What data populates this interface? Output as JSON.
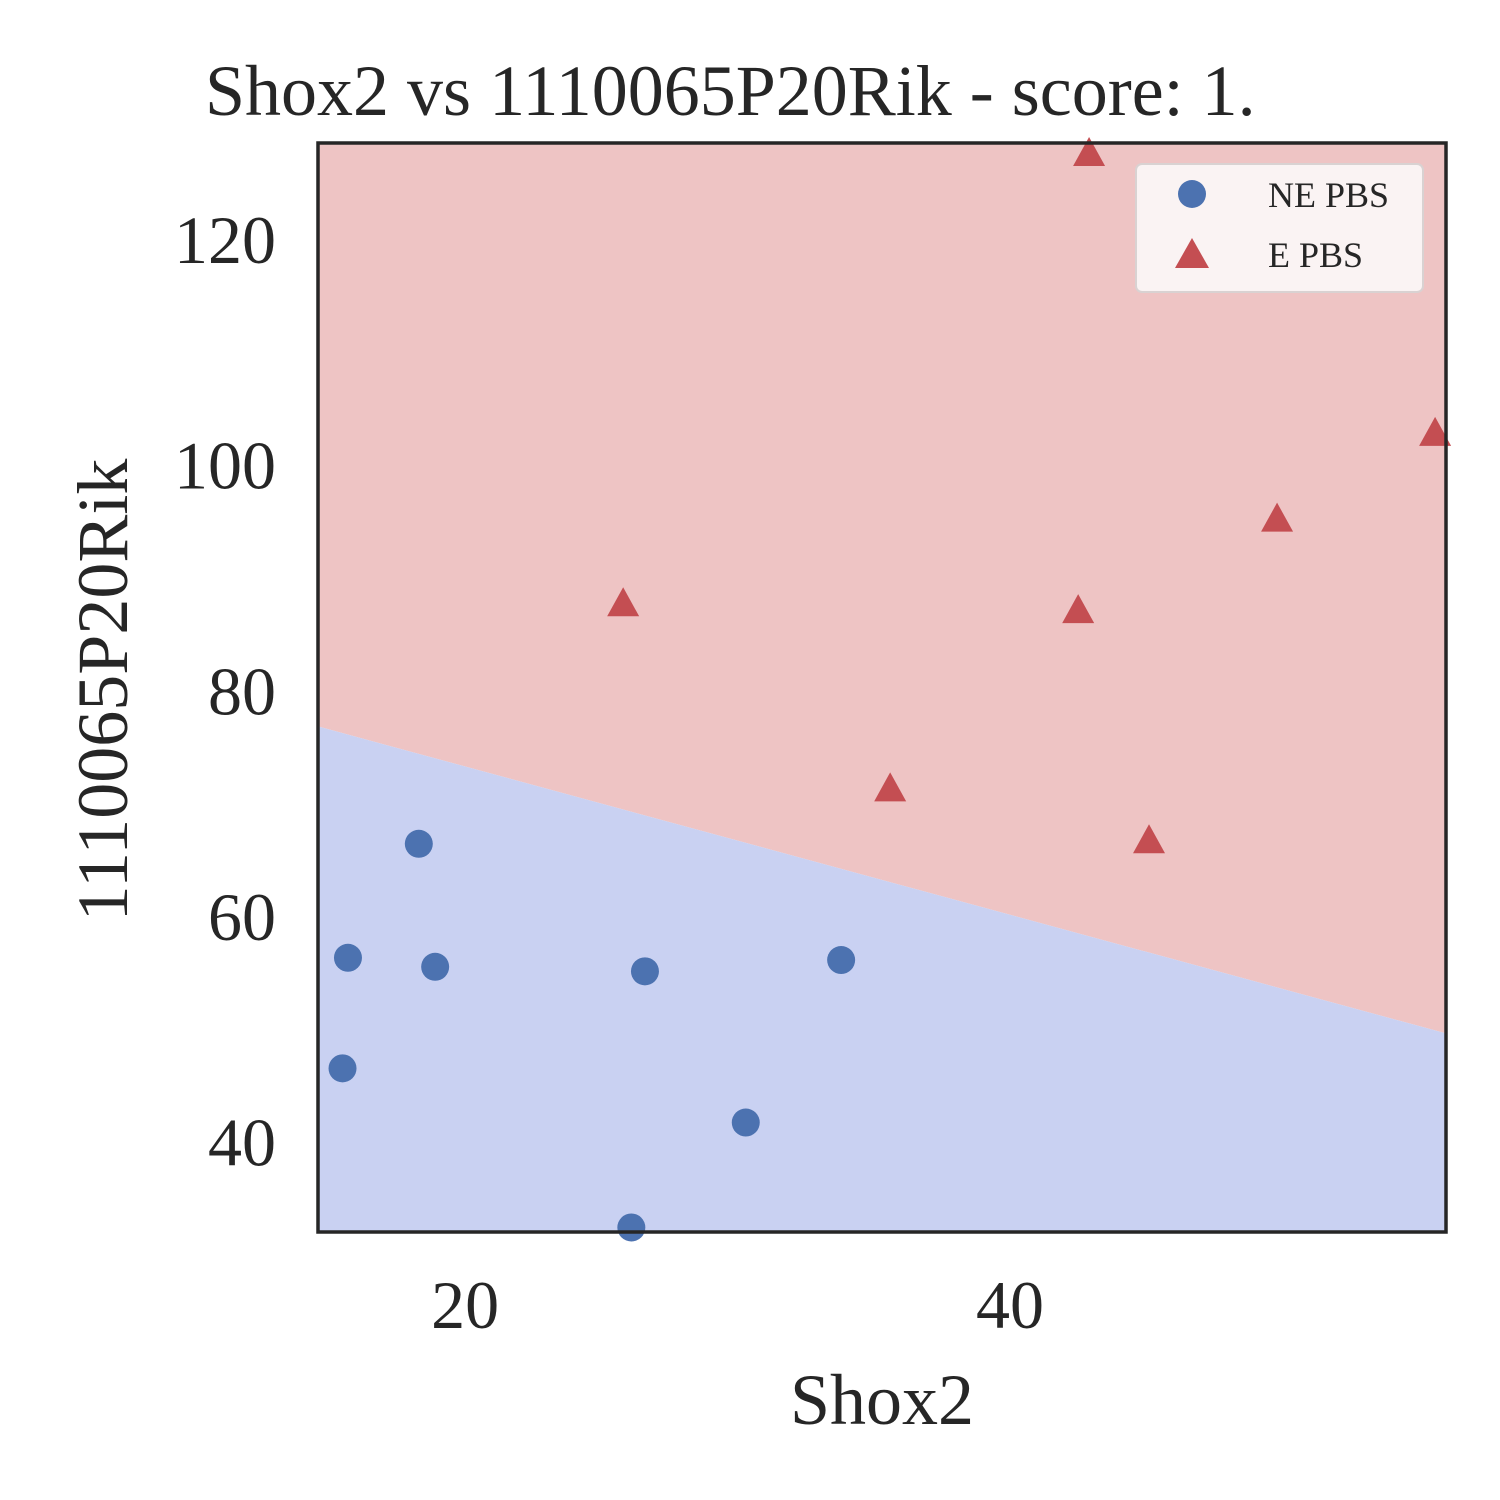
{
  "chart_data": {
    "type": "scatter",
    "title": "Shox2 vs 1110065P20Rik - score: 1.",
    "xlabel": "Shox2",
    "ylabel": "1110065P20Rik",
    "xlim": [
      14.6,
      56.0
    ],
    "ylim": [
      32.0,
      128.5
    ],
    "xticks": [
      20,
      40
    ],
    "yticks": [
      40,
      60,
      80,
      100,
      120
    ],
    "grid": false,
    "legend_position": "top-right",
    "decision_boundary": {
      "x": [
        14.6,
        56.0
      ],
      "y": [
        76.8,
        49.6
      ]
    },
    "region_colors": {
      "upper": "#eec4c4",
      "lower": "#c9d1f2"
    },
    "series": [
      {
        "name": "NE PBS",
        "marker": "circle",
        "color": "#4c72b0",
        "points": [
          {
            "x": 18.3,
            "y": 66.4
          },
          {
            "x": 15.7,
            "y": 56.3
          },
          {
            "x": 18.9,
            "y": 55.5
          },
          {
            "x": 26.6,
            "y": 55.1
          },
          {
            "x": 33.8,
            "y": 56.1
          },
          {
            "x": 15.5,
            "y": 46.5
          },
          {
            "x": 30.3,
            "y": 41.7
          },
          {
            "x": 26.1,
            "y": 32.4
          }
        ]
      },
      {
        "name": "E PBS",
        "marker": "triangle",
        "color": "#c44e52",
        "points": [
          {
            "x": 42.9,
            "y": 127.7
          },
          {
            "x": 55.6,
            "y": 102.9
          },
          {
            "x": 49.8,
            "y": 95.3
          },
          {
            "x": 25.8,
            "y": 87.8
          },
          {
            "x": 42.5,
            "y": 87.2
          },
          {
            "x": 35.6,
            "y": 71.4
          },
          {
            "x": 45.1,
            "y": 66.8
          }
        ]
      }
    ]
  }
}
